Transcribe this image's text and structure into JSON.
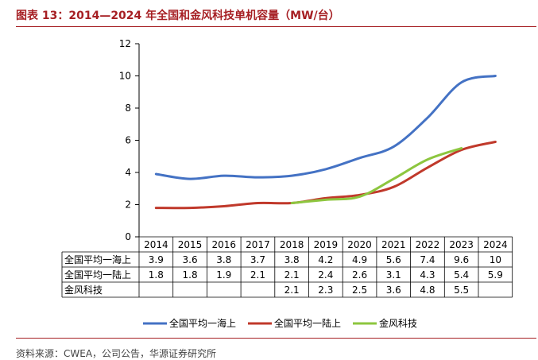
{
  "page_title": "图表 13：2014—2024 年全国和金风科技单机容量（MW/台）",
  "source": "资料来源：CWEA，公司公告，华源证券研究所",
  "chart_data": {
    "type": "line",
    "title": "2014—2024 年全国和金风科技单机容量（MW/台）",
    "x": [
      "2014",
      "2015",
      "2016",
      "2017",
      "2018",
      "2019",
      "2020",
      "2021",
      "2022",
      "2023",
      "2024"
    ],
    "ylim": [
      0,
      12
    ],
    "yticks": [
      0,
      2,
      4,
      6,
      8,
      10,
      12
    ],
    "legend_position": "bottom",
    "series": [
      {
        "name": "全国平均一海上",
        "color": "#4472c4",
        "values": [
          3.9,
          3.6,
          3.8,
          3.7,
          3.8,
          4.2,
          4.9,
          5.6,
          7.4,
          9.6,
          10
        ],
        "labels": [
          "3.9",
          "3.6",
          "3.8",
          "3.7",
          "3.8",
          "4.2",
          "4.9",
          "5.6",
          "7.4",
          "9.6",
          "10"
        ]
      },
      {
        "name": "全国平均一陆上",
        "color": "#c0392b",
        "values": [
          1.8,
          1.8,
          1.9,
          2.1,
          2.1,
          2.4,
          2.6,
          3.1,
          4.3,
          5.4,
          5.9
        ],
        "labels": [
          "1.8",
          "1.8",
          "1.9",
          "2.1",
          "2.1",
          "2.4",
          "2.6",
          "3.1",
          "4.3",
          "5.4",
          "5.9"
        ]
      },
      {
        "name": "金风科技",
        "color": "#8dc63f",
        "values": [
          null,
          null,
          null,
          null,
          2.1,
          2.3,
          2.5,
          3.6,
          4.8,
          5.5,
          null
        ],
        "labels": [
          "",
          "",
          "",
          "",
          "2.1",
          "2.3",
          "2.5",
          "3.6",
          "4.8",
          "5.5",
          ""
        ]
      }
    ]
  }
}
